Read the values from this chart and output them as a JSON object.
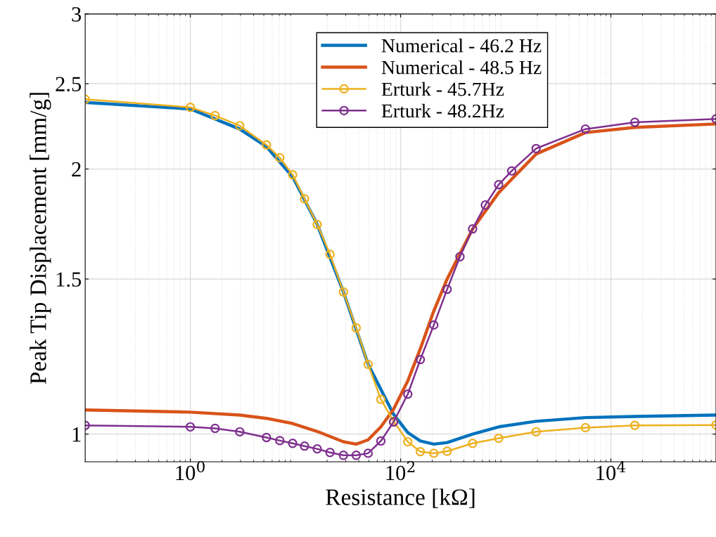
{
  "chart_data": {
    "type": "line",
    "xlabel": "Resistance [kΩ]",
    "ylabel": "Peak Tip Displacement [mm/g]",
    "log": "xy",
    "grid": true,
    "legend": "top",
    "xlim": [
      0.1,
      100000
    ],
    "xticks": [
      {
        "value": 1,
        "label": "10$^{0}$"
      },
      {
        "value": 100,
        "label": "10$^{2}$"
      },
      {
        "value": 10000,
        "label": "10$^{4}$"
      }
    ],
    "ylim": [
      0.93,
      3
    ],
    "yticks": [
      1,
      1.5,
      2,
      2.5,
      3
    ],
    "series": [
      {
        "name": "Numerical - 46.2 Hz",
        "color": "#0072bd",
        "marker": "none",
        "x": [
          0.1,
          1,
          2.95,
          5.3,
          9.4,
          16.1,
          28.6,
          49.1,
          85.7,
          117,
          154,
          207,
          277,
          484,
          857,
          1945,
          5730,
          16900,
          100000
        ],
        "values": [
          2.38,
          2.34,
          2.22,
          2.12,
          1.96,
          1.73,
          1.45,
          1.2,
          1.053,
          1.004,
          0.982,
          0.974,
          0.978,
          1.0,
          1.019,
          1.034,
          1.044,
          1.047,
          1.051
        ]
      },
      {
        "name": "Numerical - 48.5 Hz",
        "color": "#d95319",
        "marker": "none",
        "x": [
          0.1,
          1,
          2.95,
          5.3,
          9.4,
          16.1,
          28.6,
          37.8,
          49.1,
          64.9,
          85.7,
          117,
          154,
          207,
          277,
          484,
          857,
          1945,
          5730,
          16900,
          100000
        ],
        "values": [
          1.065,
          1.059,
          1.051,
          1.042,
          1.028,
          1.007,
          0.98,
          0.974,
          0.985,
          1.019,
          1.067,
          1.149,
          1.25,
          1.38,
          1.5,
          1.71,
          1.88,
          2.08,
          2.2,
          2.23,
          2.25
        ]
      },
      {
        "name": "Erturk - 45.7Hz",
        "color": "#edb120",
        "marker": "circle",
        "x": [
          0.1,
          1,
          1.72,
          2.95,
          5.3,
          7.1,
          9.4,
          12.2,
          16.1,
          21.3,
          28.6,
          37.8,
          49.1,
          64.9,
          85.7,
          117,
          154,
          207,
          277,
          484,
          857,
          1945,
          5730,
          16900,
          100000
        ],
        "values": [
          2.4,
          2.35,
          2.3,
          2.24,
          2.13,
          2.06,
          1.97,
          1.85,
          1.73,
          1.6,
          1.45,
          1.32,
          1.2,
          1.095,
          1.034,
          0.98,
          0.955,
          0.951,
          0.956,
          0.976,
          0.989,
          1.006,
          1.017,
          1.023,
          1.024
        ]
      },
      {
        "name": "Erturk - 48.2Hz",
        "color": "#7e2f8e",
        "marker": "circle",
        "x": [
          0.1,
          1,
          1.72,
          2.95,
          5.3,
          7.1,
          9.4,
          12.2,
          16.1,
          21.3,
          28.6,
          37.8,
          49.1,
          64.9,
          85.7,
          117,
          154,
          207,
          277,
          367,
          484,
          640,
          857,
          1140,
          1945,
          5730,
          16900,
          100000
        ],
        "values": [
          1.023,
          1.019,
          1.015,
          1.006,
          0.991,
          0.983,
          0.976,
          0.969,
          0.962,
          0.953,
          0.946,
          0.946,
          0.951,
          0.982,
          1.032,
          1.11,
          1.215,
          1.33,
          1.46,
          1.59,
          1.71,
          1.82,
          1.92,
          1.99,
          2.11,
          2.22,
          2.26,
          2.28
        ]
      }
    ]
  }
}
